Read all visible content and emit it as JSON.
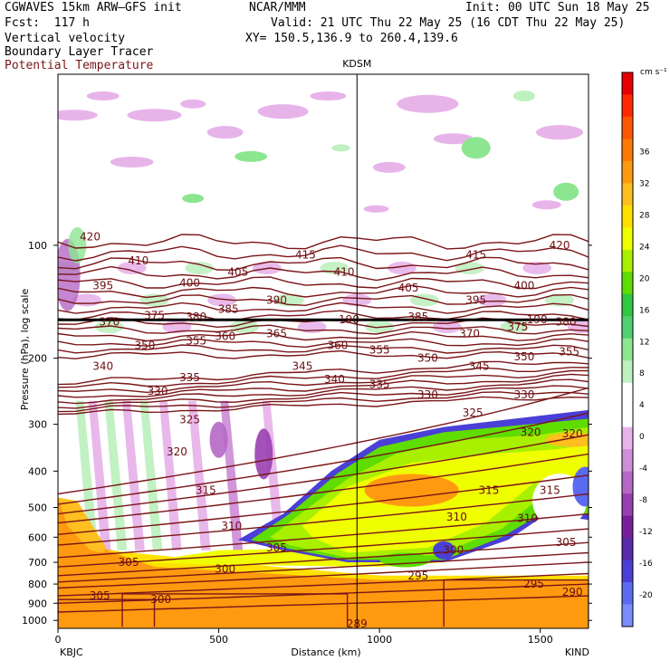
{
  "header": {
    "model": "CGWAVES 15km ARW–GFS init",
    "org": "NCAR/MMM",
    "init": "Init: 00 UTC Sun 18 May 25",
    "fcst": "Fcst:  117 h",
    "valid": "Valid: 21 UTC Thu 22 May 25 (16 CDT Thu 22 May 25)",
    "field1": "Vertical velocity",
    "field2": "Boundary Layer Tracer",
    "field3": "Potential Temperature",
    "xy": "XY= 150.5,136.9 to 260.4,139.6",
    "field3_color": "#7a1518"
  },
  "chart_data": {
    "type": "heatmap",
    "title": "Vertical velocity",
    "ylabel": "Pressure (hPa), log scale",
    "xlabel": "Distance (km)",
    "x_ticks": [
      "0",
      "500",
      "1000",
      "1500"
    ],
    "x_tick_values": [
      0,
      500,
      1000,
      1500
    ],
    "xlim": [
      0,
      1650
    ],
    "y_ticks": [
      "100",
      "200",
      "300",
      "400",
      "500",
      "600",
      "700",
      "800",
      "900",
      "1000"
    ],
    "y_tick_values": [
      100,
      200,
      300,
      400,
      500,
      600,
      700,
      800,
      900,
      1000
    ],
    "ylim": [
      1050,
      35
    ],
    "yscale": "log",
    "left_station": "KBJC",
    "right_station": "KIND",
    "mid_station": "KDSM",
    "mid_station_km": 930,
    "colorbar": {
      "unit": "cm s⁻¹",
      "labels": [
        "36",
        "32",
        "28",
        "24",
        "20",
        "16",
        "12",
        "8",
        "4",
        "0",
        "-4",
        "-8",
        "-12",
        "-16",
        "-20"
      ],
      "colors": [
        "#e60000",
        "#ff2a00",
        "#ff5500",
        "#ff7a00",
        "#ff9a10",
        "#ffbf20",
        "#ffe100",
        "#f0ff00",
        "#a8f000",
        "#5fdc00",
        "#30c840",
        "#50d070",
        "#8ce690",
        "#bff0c0",
        "#ffffff",
        "#ffffff",
        "#e7b4ea",
        "#cf8fd8",
        "#b568c6",
        "#993fb0",
        "#7a1f9a",
        "#5a2aa8",
        "#4a3fd6",
        "#5b6bf0",
        "#7a8cff"
      ]
    },
    "theta_labels": [
      {
        "v": "420",
        "x": 100,
        "p": 95
      },
      {
        "v": "410",
        "x": 250,
        "p": 110
      },
      {
        "v": "395",
        "x": 140,
        "p": 128
      },
      {
        "v": "400",
        "x": 410,
        "p": 126
      },
      {
        "v": "405",
        "x": 560,
        "p": 118
      },
      {
        "v": "415",
        "x": 770,
        "p": 106
      },
      {
        "v": "410",
        "x": 890,
        "p": 118
      },
      {
        "v": "390",
        "x": 680,
        "p": 140
      },
      {
        "v": "385",
        "x": 530,
        "p": 148
      },
      {
        "v": "375",
        "x": 300,
        "p": 154
      },
      {
        "v": "380",
        "x": 430,
        "p": 155
      },
      {
        "v": "370",
        "x": 160,
        "p": 160
      },
      {
        "v": "360",
        "x": 520,
        "p": 175
      },
      {
        "v": "365",
        "x": 680,
        "p": 172
      },
      {
        "v": "350",
        "x": 270,
        "p": 185
      },
      {
        "v": "355",
        "x": 430,
        "p": 180
      },
      {
        "v": "340",
        "x": 140,
        "p": 210
      },
      {
        "v": "335",
        "x": 410,
        "p": 225
      },
      {
        "v": "345",
        "x": 760,
        "p": 210
      },
      {
        "v": "360",
        "x": 870,
        "p": 185
      },
      {
        "v": "340",
        "x": 860,
        "p": 228
      },
      {
        "v": "330",
        "x": 310,
        "p": 245
      },
      {
        "v": "325",
        "x": 410,
        "p": 292
      },
      {
        "v": "320",
        "x": 370,
        "p": 355
      },
      {
        "v": "315",
        "x": 460,
        "p": 450
      },
      {
        "v": "310",
        "x": 540,
        "p": 560
      },
      {
        "v": "305",
        "x": 680,
        "p": 640
      },
      {
        "v": "305",
        "x": 220,
        "p": 700
      },
      {
        "v": "300",
        "x": 520,
        "p": 730
      },
      {
        "v": "305",
        "x": 130,
        "p": 860
      },
      {
        "v": "300",
        "x": 320,
        "p": 880
      },
      {
        "v": "405",
        "x": 1090,
        "p": 130
      },
      {
        "v": "415",
        "x": 1300,
        "p": 106
      },
      {
        "v": "420",
        "x": 1560,
        "p": 100
      },
      {
        "v": "395",
        "x": 1300,
        "p": 140
      },
      {
        "v": "400",
        "x": 1450,
        "p": 128
      },
      {
        "v": "385",
        "x": 1120,
        "p": 155
      },
      {
        "v": "370",
        "x": 1280,
        "p": 172
      },
      {
        "v": "375",
        "x": 1430,
        "p": 165
      },
      {
        "v": "380",
        "x": 1580,
        "p": 160
      },
      {
        "v": "355",
        "x": 1000,
        "p": 190
      },
      {
        "v": "350",
        "x": 1150,
        "p": 200
      },
      {
        "v": "345",
        "x": 1310,
        "p": 210
      },
      {
        "v": "350",
        "x": 1450,
        "p": 198
      },
      {
        "v": "355",
        "x": 1590,
        "p": 192
      },
      {
        "v": "335",
        "x": 1000,
        "p": 235
      },
      {
        "v": "330",
        "x": 1150,
        "p": 250
      },
      {
        "v": "325",
        "x": 1290,
        "p": 280
      },
      {
        "v": "330",
        "x": 1450,
        "p": 250
      },
      {
        "v": "320",
        "x": 1470,
        "p": 315
      },
      {
        "v": "320",
        "x": 1600,
        "p": 318
      },
      {
        "v": "315",
        "x": 1340,
        "p": 450
      },
      {
        "v": "315",
        "x": 1530,
        "p": 450
      },
      {
        "v": "310",
        "x": 1240,
        "p": 530
      },
      {
        "v": "310",
        "x": 1460,
        "p": 535
      },
      {
        "v": "305",
        "x": 1580,
        "p": 620
      },
      {
        "v": "300",
        "x": 1230,
        "p": 650
      },
      {
        "v": "295",
        "x": 1120,
        "p": 760
      },
      {
        "v": "295",
        "x": 1480,
        "p": 800
      },
      {
        "v": "290",
        "x": 1600,
        "p": 840
      },
      {
        "v": "289",
        "x": 930,
        "p": 1020
      },
      {
        "v": "190",
        "x": 905,
        "p": 158
      },
      {
        "v": "190",
        "x": 1490,
        "p": 158
      }
    ]
  }
}
